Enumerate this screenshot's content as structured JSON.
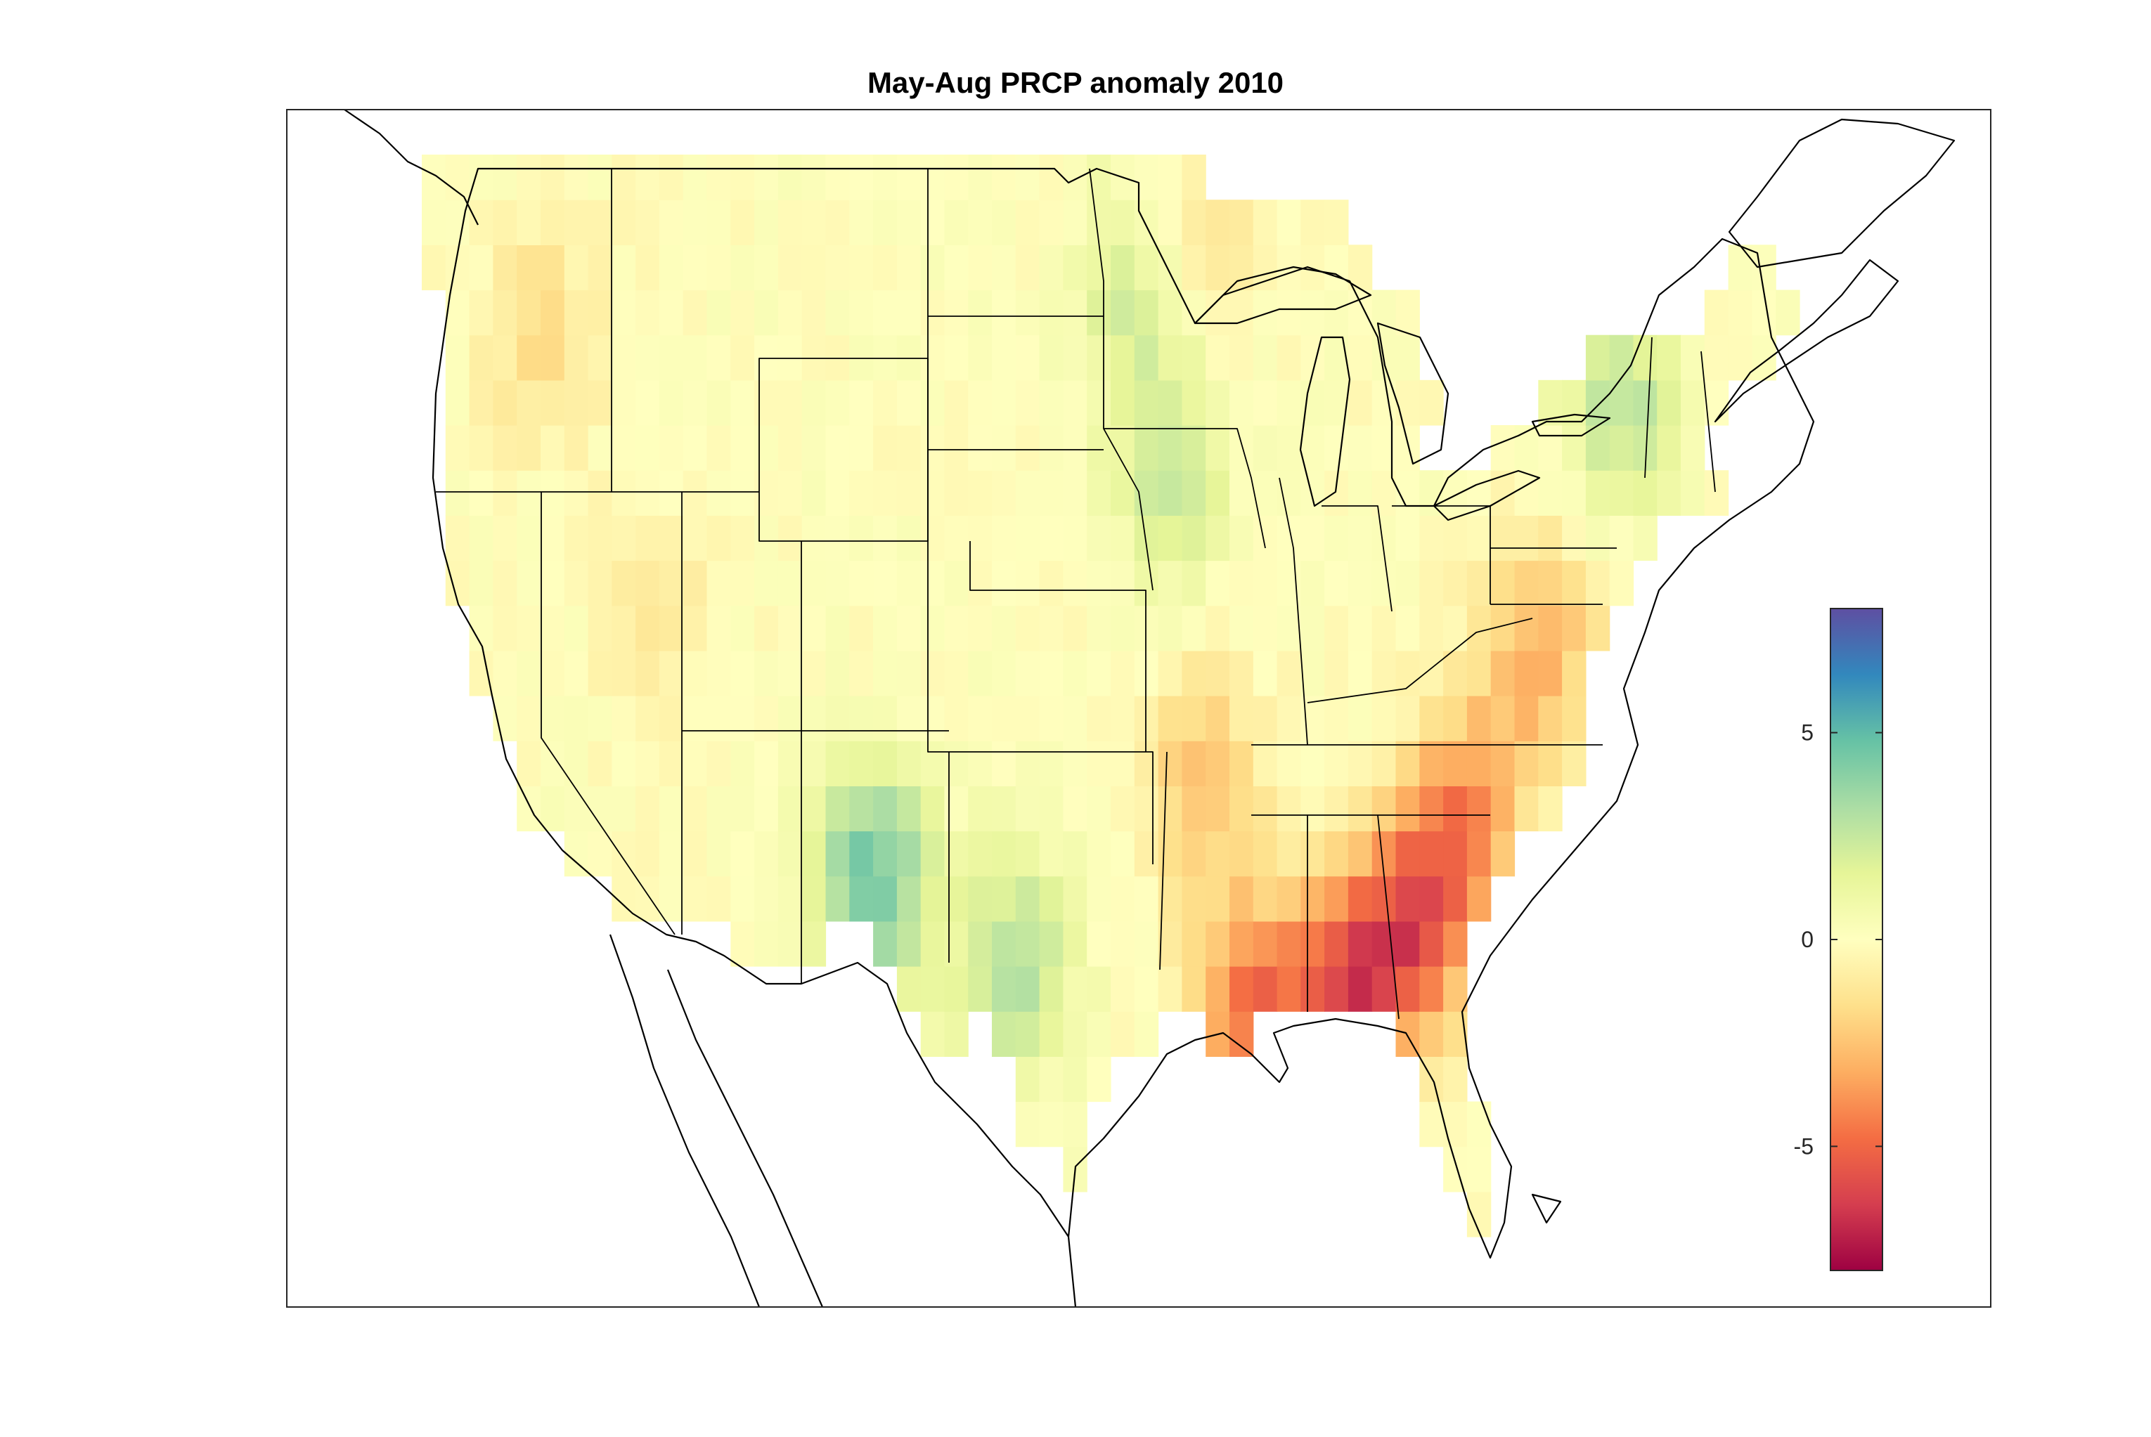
{
  "title": "May-Aug PRCP anomaly 2010",
  "colorbar": {
    "ticks": [
      {
        "value": 5,
        "label": "5"
      },
      {
        "value": 0,
        "label": "0"
      },
      {
        "value": -5,
        "label": "-5"
      }
    ],
    "range": [
      -8,
      8
    ],
    "colormap": [
      "#9e0142",
      "#d53e4f",
      "#f46d43",
      "#fdae61",
      "#fee08b",
      "#ffffbf",
      "#e6f598",
      "#abdda4",
      "#66c2a5",
      "#3288bd",
      "#5e4fa2"
    ]
  },
  "grid_anomaly": {
    "lon_range": [
      -125,
      -67
    ],
    "lat_range": [
      25,
      49
    ],
    "cell_deg": 1,
    "hotspots": [
      {
        "lon": -106,
        "lat": 33,
        "v": 4.5
      },
      {
        "lon": -100,
        "lat": 31,
        "v": 3.0
      },
      {
        "lon": -93.5,
        "lat": 42,
        "v": 2.5
      },
      {
        "lon": -95,
        "lat": 46,
        "v": 2.2
      },
      {
        "lon": -74.5,
        "lat": 43.5,
        "v": 2.8
      },
      {
        "lon": -83,
        "lat": 32,
        "v": -5.0
      },
      {
        "lon": -86,
        "lat": 30.5,
        "v": -5.5
      },
      {
        "lon": -90,
        "lat": 30,
        "v": -4.5
      },
      {
        "lon": -81,
        "lat": 34.5,
        "v": -3.5
      },
      {
        "lon": -78,
        "lat": 38,
        "v": -3.0
      },
      {
        "lon": -92,
        "lat": 35,
        "v": -2.5
      },
      {
        "lon": -120,
        "lat": 45,
        "v": -1.5
      },
      {
        "lon": -115,
        "lat": 39,
        "v": -1.0
      },
      {
        "lon": -92.5,
        "lat": 47,
        "v": -1.5
      }
    ]
  }
}
